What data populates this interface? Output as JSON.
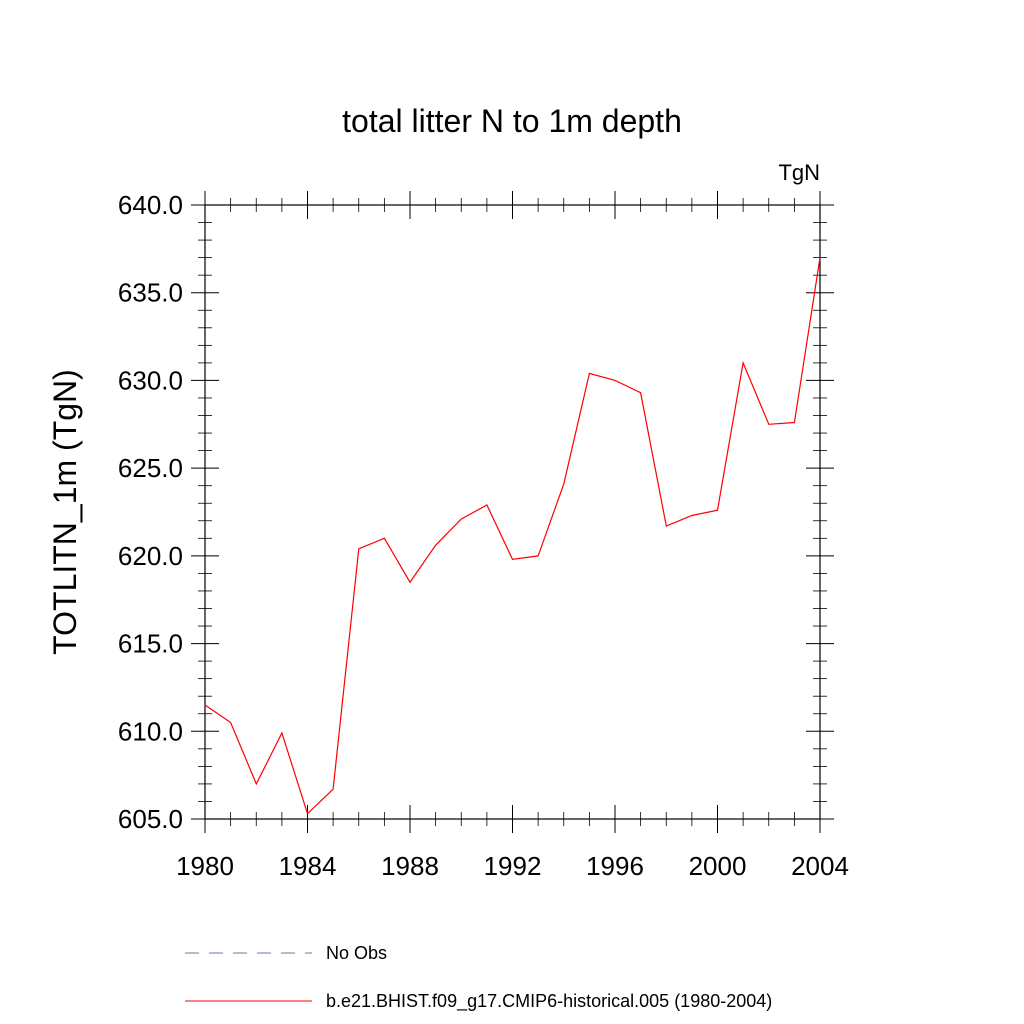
{
  "chart_data": {
    "type": "line",
    "title": "total litter N to 1m depth",
    "units_label": "TgN",
    "ylabel": "TOTLITN_1m  (TgN)",
    "xlabel": "",
    "xlim": [
      1980,
      2004
    ],
    "ylim": [
      605,
      640
    ],
    "x_ticks": [
      "1980",
      "1984",
      "1988",
      "1992",
      "1996",
      "2000",
      "2004"
    ],
    "y_ticks": [
      "605.0",
      "610.0",
      "615.0",
      "620.0",
      "625.0",
      "630.0",
      "635.0",
      "640.0"
    ],
    "grid": false,
    "series": [
      {
        "name": "b.e21.BHIST.f09_g17.CMIP6-historical.005 (1980-2004)",
        "color": "#ff0000",
        "style": "solid",
        "x": [
          1980,
          1981,
          1982,
          1983,
          1984,
          1985,
          1986,
          1987,
          1988,
          1989,
          1990,
          1991,
          1992,
          1993,
          1994,
          1995,
          1996,
          1997,
          1998,
          1999,
          2000,
          2001,
          2002,
          2003,
          2004
        ],
        "values": [
          611.5,
          610.5,
          607.0,
          609.9,
          605.3,
          606.7,
          620.4,
          621.0,
          618.5,
          620.6,
          622.1,
          622.9,
          619.8,
          620.0,
          624.1,
          630.4,
          630.0,
          629.3,
          621.7,
          622.3,
          622.6,
          631.0,
          627.5,
          627.6,
          637.0
        ]
      }
    ],
    "legend": {
      "placement": "bottom",
      "entries": [
        {
          "label": "No Obs",
          "color": "#7d6fa8",
          "style": "dashed"
        },
        {
          "label": "b.e21.BHIST.f09_g17.CMIP6-historical.005 (1980-2004)",
          "color": "#ff0000",
          "style": "solid"
        }
      ]
    }
  }
}
